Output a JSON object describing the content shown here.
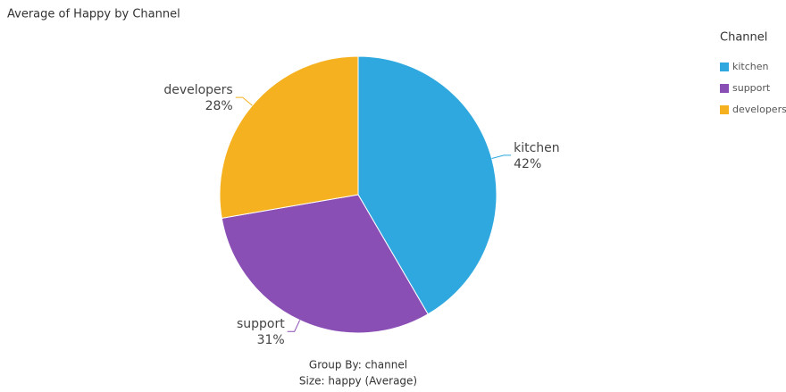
{
  "chart_data": {
    "type": "pie",
    "title": "Average of Happy by Channel",
    "categories": [
      "kitchen",
      "support",
      "developers"
    ],
    "values": [
      42,
      31,
      28
    ],
    "value_labels": [
      "42%",
      "31%",
      "28%"
    ],
    "colors": [
      "#2ea8df",
      "#8a4fb5",
      "#f5b11f"
    ],
    "legend_title": "Channel",
    "legend": "top-right",
    "footer": [
      "Group By: channel",
      "Size: happy (Average)"
    ]
  }
}
